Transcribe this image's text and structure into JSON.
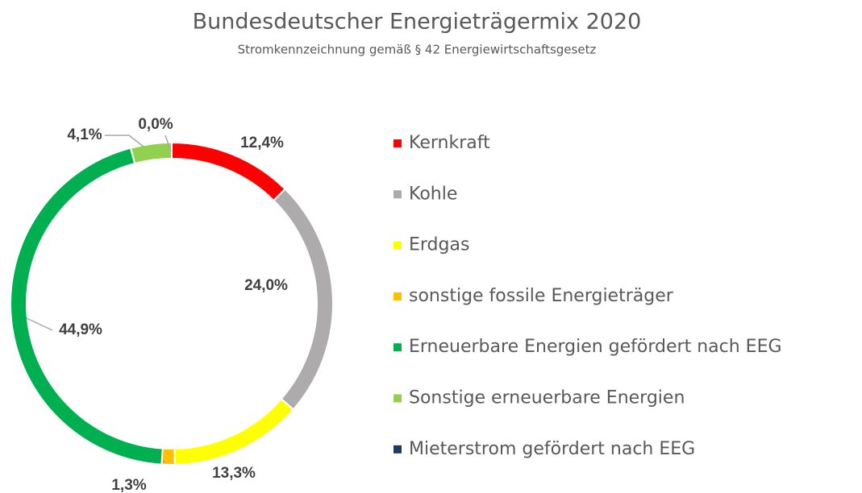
{
  "chart_data": {
    "type": "donut",
    "title": "Bundesdeutscher  Energieträgermix 2020",
    "subtitle": "Stromkennzeichnung gemäß § 42 Energiewirtschaftsgesetz",
    "categories": [
      "Kernkraft",
      "Kohle",
      "Erdgas",
      "sonstige fossile Energieträger",
      "Erneuerbare Energien gefördert nach EEG",
      "Sonstige erneuerbare Energien",
      "Mieterstrom gefördert nach EEG"
    ],
    "values": [
      12.4,
      24.0,
      13.3,
      1.3,
      44.9,
      4.1,
      0.0
    ],
    "value_labels": [
      "12,4%",
      "24,0%",
      "13,3%",
      "1,3%",
      "44,9%",
      "4,1%",
      "0,0%"
    ],
    "colors": [
      "#ff0000",
      "#adabab",
      "#ffff00",
      "#ffc000",
      "#00b050",
      "#92d050",
      "#1f3864"
    ],
    "legend": "right"
  }
}
